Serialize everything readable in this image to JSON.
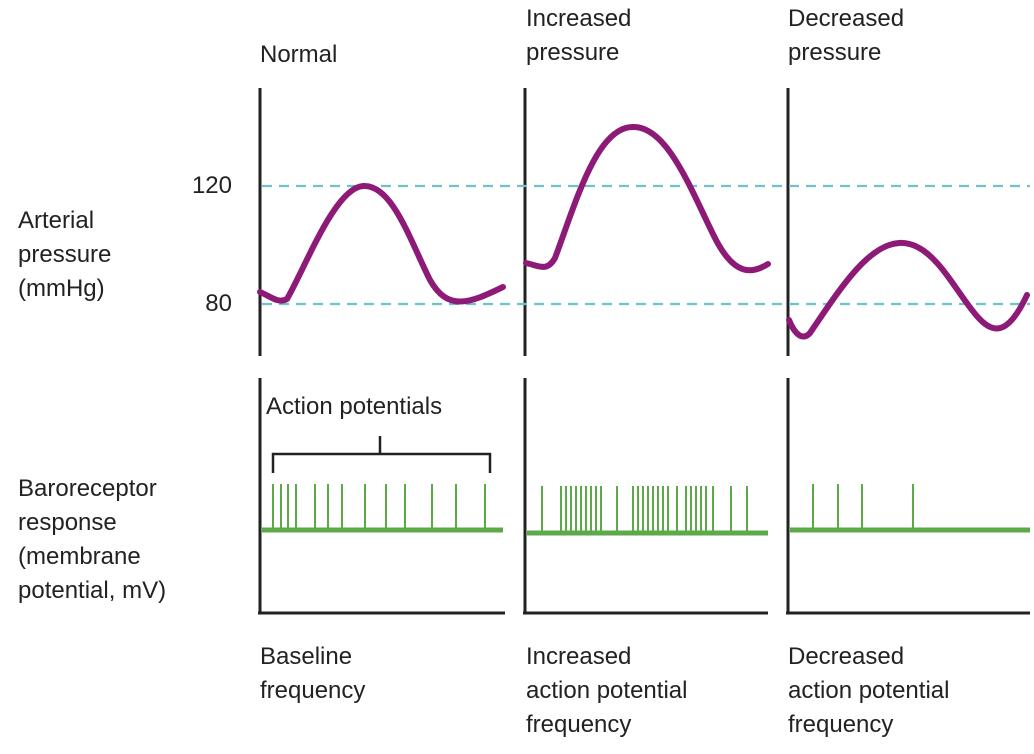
{
  "conditions": [
    {
      "title": "Normal",
      "caption": "Baseline\nfrequency"
    },
    {
      "title": "Increased\npressure",
      "caption": "Increased\naction potential\nfrequency"
    },
    {
      "title": "Decreased\npressure",
      "caption": "Decreased\naction potential\nfrequency"
    }
  ],
  "pressure_axis": {
    "label": "Arterial\npressure\n(mmHg)",
    "ticks": [
      "120",
      "80"
    ],
    "values": [
      120,
      80
    ]
  },
  "response_axis": {
    "label": "Baroreceptor\nresponse\n(membrane\npotential, mV)"
  },
  "annotation": "Action potentials",
  "colors": {
    "pressure_wave": "#8e1a78",
    "reference_line": "#6cc4c8",
    "baroreceptor": "#5ca94a",
    "axis": "#222222"
  }
}
